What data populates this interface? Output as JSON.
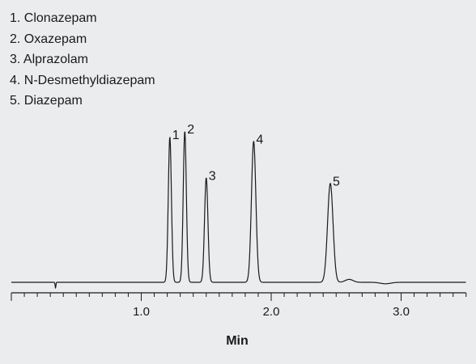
{
  "chart_data": {
    "type": "line",
    "title": "",
    "xlabel": "Min",
    "ylabel": "",
    "xlim": [
      0,
      3.5
    ],
    "ylim": [
      0,
      100
    ],
    "x_ticks": [
      1.0,
      2.0,
      3.0
    ],
    "x_tick_labels": [
      "1.0",
      "2.0",
      "3.0"
    ],
    "minor_tick_step": 0.1,
    "grid": false,
    "line_color": "#1a1a1a",
    "background": "#ebecee",
    "legend_placement": "top-left",
    "legend_entries": [
      "1. Clonazepam",
      "2. Oxazepam",
      "3. Alprazolam",
      "4. N-Desmethyldiazepam",
      "5. Diazepam"
    ],
    "peaks": [
      {
        "label": "1",
        "compound": "Clonazepam",
        "rt": 1.22,
        "height": 100,
        "width": 0.012
      },
      {
        "label": "2",
        "compound": "Oxazepam",
        "rt": 1.335,
        "height": 104,
        "width": 0.012
      },
      {
        "label": "3",
        "compound": "Alprazolam",
        "rt": 1.5,
        "height": 72,
        "width": 0.013
      },
      {
        "label": "4",
        "compound": "N-Desmethyldiazepam",
        "rt": 1.865,
        "height": 97,
        "width": 0.017
      },
      {
        "label": "5",
        "compound": "Diazepam",
        "rt": 2.455,
        "height": 68,
        "width": 0.021
      }
    ],
    "minor_features": [
      {
        "type": "dip",
        "rt": 0.34,
        "height": -4,
        "width": 0.003
      },
      {
        "type": "bump",
        "rt": 2.6,
        "height": 2,
        "width": 0.03
      },
      {
        "type": "bump",
        "rt": 2.88,
        "height": -1,
        "width": 0.04
      }
    ]
  }
}
